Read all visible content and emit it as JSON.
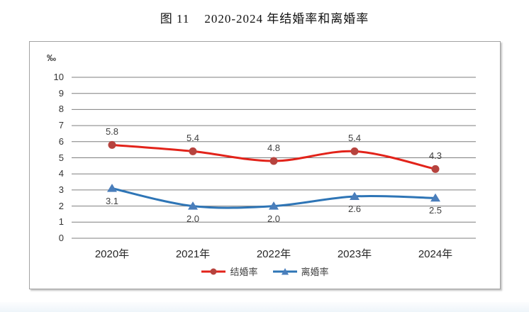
{
  "title": "图 11    2020-2024 年结婚率和离婚率",
  "chart_data": {
    "type": "line",
    "title": "图 11 2020-2024 年结婚率和离婚率",
    "unit_label": "‰",
    "categories": [
      "2020年",
      "2021年",
      "2022年",
      "2023年",
      "2024年"
    ],
    "series": [
      {
        "name": "结婚率",
        "values": [
          5.8,
          5.4,
          4.8,
          5.4,
          4.3
        ],
        "labels": [
          "5.8",
          "5.4",
          "4.8",
          "5.4",
          "4.3"
        ],
        "color": "#e2231a",
        "marker_color": "#b6433e",
        "marker": "circle",
        "label_position": "above"
      },
      {
        "name": "离婚率",
        "values": [
          3.1,
          2.0,
          2.0,
          2.6,
          2.5
        ],
        "labels": [
          "3.1",
          "2.0",
          "2.0",
          "2.6",
          "2.5"
        ],
        "color": "#2e75b6",
        "marker_color": "#4a7ebb",
        "marker": "triangle",
        "label_position": "below"
      }
    ],
    "ylim": [
      0,
      10
    ],
    "yticks": [
      0,
      1,
      2,
      3,
      4,
      5,
      6,
      7,
      8,
      9,
      10
    ],
    "grid": true,
    "gridline_color": "#7f7f7f",
    "smooth": true,
    "legend_position": "bottom"
  }
}
